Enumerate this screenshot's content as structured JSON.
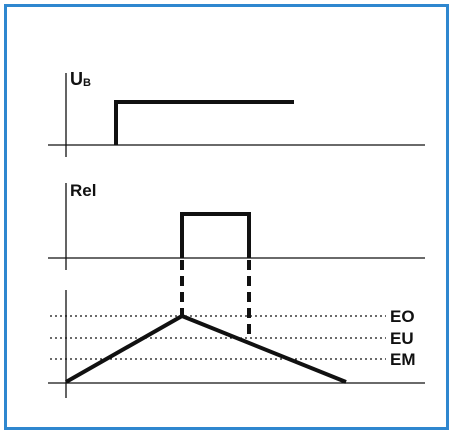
{
  "colors": {
    "frame_border": "#2f87cf",
    "line": "#111111"
  },
  "diagram": {
    "ub_label": "U",
    "ub_subscript": "B",
    "rel_label": "Rel",
    "levels": {
      "eo": "EO",
      "eu": "EU",
      "em": "EM"
    }
  }
}
